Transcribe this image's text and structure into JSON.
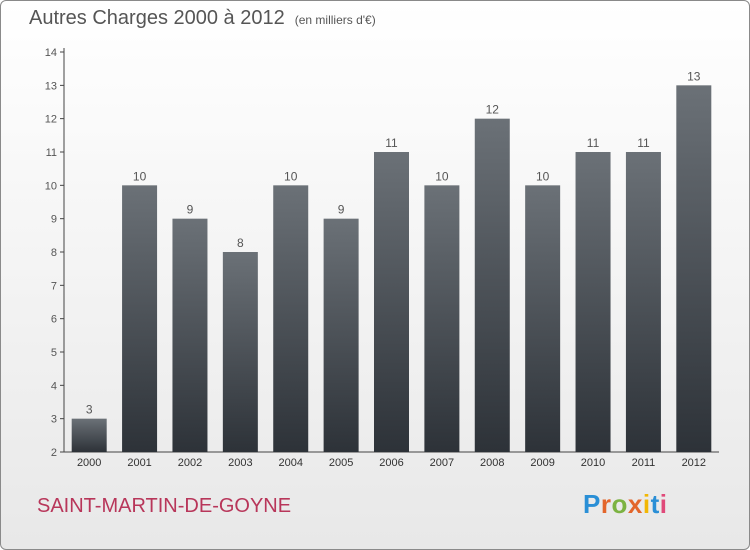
{
  "chart_data": {
    "type": "bar",
    "title": "Autres Charges 2000 à 2012",
    "subtitle": "(en milliers d'€)",
    "categories": [
      "2000",
      "2001",
      "2002",
      "2003",
      "2004",
      "2005",
      "2006",
      "2007",
      "2008",
      "2009",
      "2010",
      "2011",
      "2012"
    ],
    "values": [
      3,
      10,
      9,
      8,
      10,
      9,
      11,
      10,
      12,
      10,
      11,
      11,
      13
    ],
    "ylim": [
      2,
      14
    ],
    "yticks": [
      2,
      3,
      4,
      5,
      6,
      7,
      8,
      9,
      10,
      11,
      12,
      13,
      14
    ],
    "grid": false,
    "data_labels": true,
    "colors": {
      "bar_top": "#6b7177",
      "bar_bottom": "#2d3238",
      "axis": "#444444",
      "text": "#555555"
    }
  },
  "footer": {
    "town": "SAINT-MARTIN-DE-GOYNE",
    "town_color": "#b8365a"
  },
  "logo": {
    "text": "Proxiti",
    "letter_colors": [
      "#2a8fd6",
      "#e3662b",
      "#7cb342",
      "#e3662b",
      "#f2b705",
      "#2a8fd6",
      "#e04a7a"
    ]
  }
}
